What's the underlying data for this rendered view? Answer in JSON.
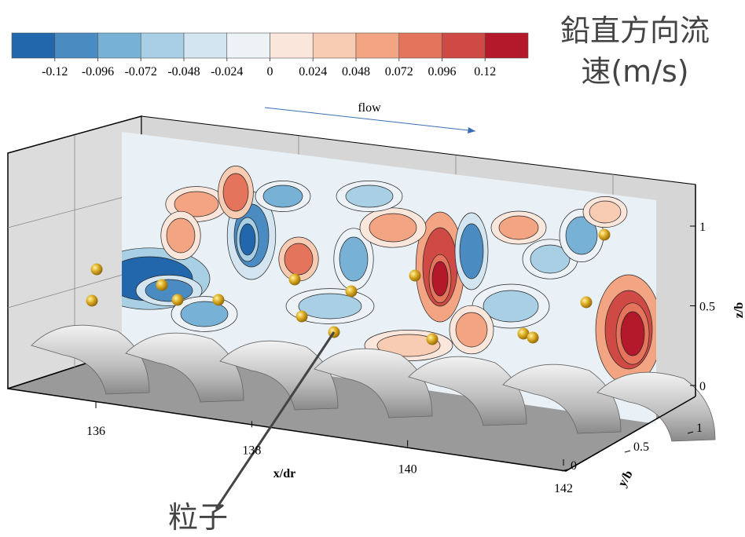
{
  "legend": {
    "title_lines": [
      "鉛直方向流",
      "速(m/s)"
    ],
    "colors": [
      "#2266ac",
      "#4a8bc2",
      "#78b1d6",
      "#a9cfe5",
      "#d3e5f0",
      "#ecf2f6",
      "#fbe6dc",
      "#f8cbb3",
      "#f3a483",
      "#e4745c",
      "#cf4a44",
      "#b4182b"
    ],
    "ticks": [
      -0.12,
      -0.096,
      -0.072,
      -0.048,
      -0.024,
      0,
      0.024,
      0.048,
      0.072,
      0.096,
      0.12
    ]
  },
  "annotations": {
    "flow": "flow",
    "particle": "粒子"
  },
  "axes": {
    "x": {
      "label": "x/dr",
      "ticks": [
        136,
        138,
        140,
        142
      ]
    },
    "y": {
      "label": "y/b",
      "ticks": [
        0,
        0.5,
        1
      ]
    },
    "z": {
      "label": "z/b",
      "ticks": [
        0,
        0.5,
        1
      ]
    }
  }
}
